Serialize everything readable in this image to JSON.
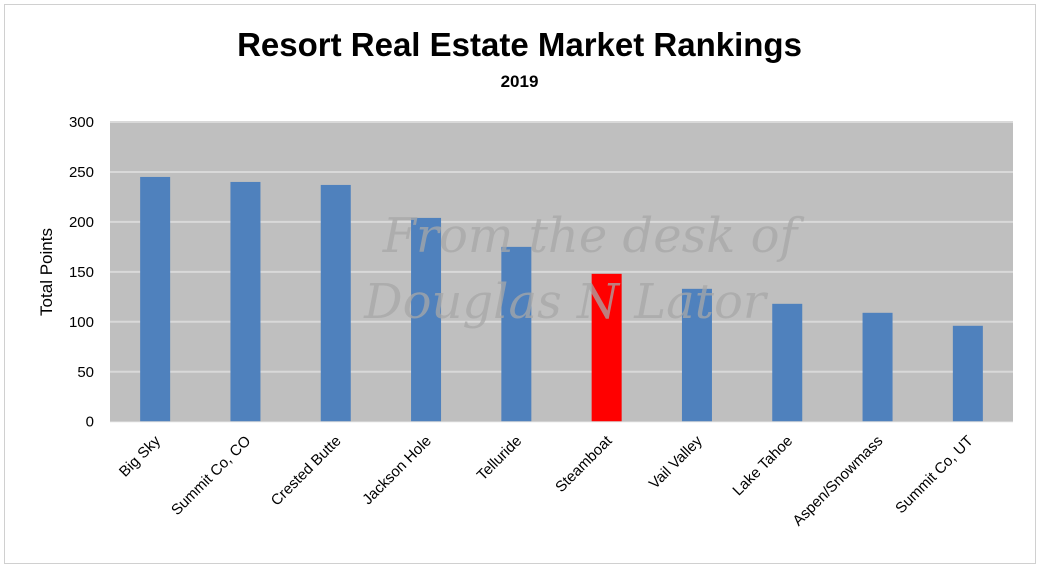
{
  "chart_data": {
    "type": "bar",
    "title": "Resort Real Estate Market Rankings",
    "subtitle": "2019",
    "xlabel": "",
    "ylabel": "Total Points",
    "ylim": [
      0,
      300
    ],
    "yticks": [
      0,
      50,
      100,
      150,
      200,
      250,
      300
    ],
    "grid": true,
    "categories": [
      "Big Sky",
      "Summit Co, CO",
      "Crested Butte",
      "Jackson Hole",
      "Telluride",
      "Steamboat",
      "Vail Valley",
      "Lake Tahoe",
      "Aspen/Snowmass",
      "Summit Co, UT"
    ],
    "values": [
      245,
      240,
      237,
      204,
      175,
      148,
      133,
      118,
      109,
      96
    ],
    "colors": [
      "#4f81bd",
      "#4f81bd",
      "#4f81bd",
      "#4f81bd",
      "#4f81bd",
      "#ff0000",
      "#4f81bd",
      "#4f81bd",
      "#4f81bd",
      "#4f81bd"
    ],
    "background": "#bfbfbf",
    "watermark": [
      "From the desk of",
      "Douglas N Lator"
    ]
  }
}
